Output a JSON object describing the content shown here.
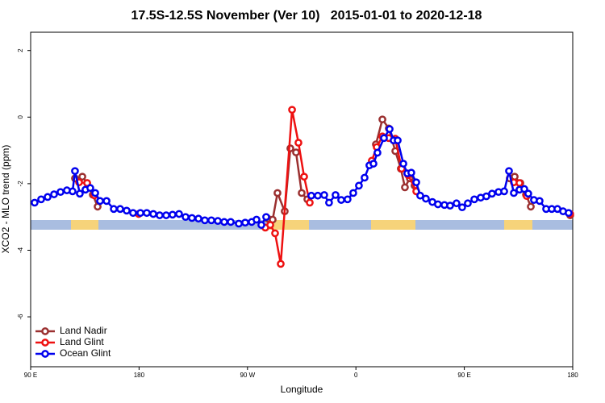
{
  "chart_data": {
    "type": "line",
    "title": "17.5S-12.5S November (Ver 10)   2015-01-01 to 2020-12-18",
    "x_label": "Longitude",
    "y_label": "XCO2 - MLO trend (ppm)",
    "xlim": [
      90,
      540
    ],
    "ylim": [
      -7.5,
      2.55
    ],
    "xticks": [
      {
        "value": 90,
        "label": "90 E"
      },
      {
        "value": 180,
        "label": "180"
      },
      {
        "value": 270,
        "label": "90 W"
      },
      {
        "value": 360,
        "label": "0"
      },
      {
        "value": 450,
        "label": "90 E"
      },
      {
        "value": 540,
        "label": "180"
      }
    ],
    "yticks": [
      2,
      0,
      -2,
      -4,
      -6
    ],
    "legend": "bottom-left",
    "series": [
      {
        "name": "Land Nadir",
        "color": "#9b3030",
        "x": [
          126.8,
          132.9,
          136.9,
          141.6,
          145.6,
          null,
          286.9,
          290.9,
          294.9,
          300.9,
          305.6,
          310.3,
          315.0,
          319.7,
          null,
          376.6,
          382.0,
          387.3,
          392.7,
          397.3,
          400.7,
          404.7,
          408.7,
          null,
          487.7,
          491.8,
          496.5,
          501.2,
          505.2,
          null,
          537.9
        ],
        "values": [
          -1.84,
          -1.79,
          -1.98,
          -2.33,
          -2.69,
          null,
          -3.05,
          -3.08,
          -2.28,
          -2.83,
          -0.94,
          -1.06,
          -2.28,
          -2.47,
          null,
          -0.82,
          -0.07,
          -0.34,
          -1.02,
          -1.55,
          -2.11,
          -1.84,
          -2.06,
          null,
          -1.84,
          -1.79,
          -1.98,
          -2.33,
          -2.69,
          null,
          -2.95
        ]
      },
      {
        "name": "Land Glint",
        "color": "#ee1111",
        "x": [
          130.2,
          136.9,
          142.9,
          null,
          179.7,
          null,
          284.8,
          288.9,
          292.9,
          297.6,
          307.0,
          312.3,
          317.0,
          321.7,
          null,
          373.2,
          377.3,
          382.0,
          387.3,
          392.7,
          398.0,
          403.4,
          410.1,
          null,
          491.1,
          495.8,
          501.8,
          null,
          537.9
        ],
        "values": [
          -1.96,
          -1.98,
          -2.35,
          null,
          -2.91,
          null,
          -3.32,
          -3.24,
          -3.49,
          -4.41,
          0.22,
          -0.77,
          -1.79,
          -2.57,
          null,
          -1.31,
          -0.9,
          -0.58,
          -0.63,
          -0.65,
          -1.55,
          -1.74,
          -2.23,
          null,
          -1.96,
          -1.98,
          -2.37,
          null,
          -2.91
        ]
      },
      {
        "name": "Ocean Glint",
        "color": "#0000ee",
        "x": [
          93.3,
          98.7,
          104.1,
          109.4,
          114.8,
          120.1,
          124.8,
          126.8,
          130.8,
          135.5,
          139.5,
          143.6,
          147.6,
          153.0,
          159.0,
          164.3,
          169.7,
          175.0,
          181.1,
          186.4,
          191.8,
          197.1,
          202.5,
          207.8,
          213.2,
          218.6,
          223.9,
          229.3,
          234.6,
          240.0,
          245.4,
          250.7,
          256.1,
          262.8,
          268.1,
          273.5,
          277.5,
          281.5,
          285.5,
          null,
          323.0,
          328.4,
          333.7,
          337.7,
          343.1,
          347.8,
          353.1,
          357.8,
          362.5,
          367.2,
          371.2,
          374.6,
          377.9,
          383.3,
          388.0,
          391.3,
          394.7,
          399.4,
          402.7,
          406.0,
          410.1,
          413.4,
          418.1,
          423.5,
          428.1,
          433.5,
          438.2,
          443.5,
          448.2,
          452.9,
          458.3,
          463.6,
          468.3,
          473.0,
          478.4,
          483.1,
          487.1,
          491.1,
          495.8,
          499.8,
          503.1,
          507.8,
          512.5,
          517.9,
          522.6,
          527.3,
          532.0,
          536.6
        ],
        "values": [
          -2.57,
          -2.47,
          -2.4,
          -2.32,
          -2.25,
          -2.2,
          -2.23,
          -1.62,
          -2.3,
          -2.18,
          -2.13,
          -2.28,
          -2.52,
          -2.52,
          -2.76,
          -2.76,
          -2.81,
          -2.88,
          -2.88,
          -2.88,
          -2.91,
          -2.95,
          -2.95,
          -2.93,
          -2.91,
          -3.0,
          -3.03,
          -3.05,
          -3.1,
          -3.1,
          -3.12,
          -3.15,
          -3.15,
          -3.2,
          -3.17,
          -3.15,
          -3.08,
          -3.24,
          -3.0,
          null,
          -2.36,
          -2.36,
          -2.34,
          -2.57,
          -2.34,
          -2.49,
          -2.47,
          -2.28,
          -2.06,
          -1.82,
          -1.45,
          -1.4,
          -1.07,
          -0.63,
          -0.36,
          -0.7,
          -0.7,
          -1.4,
          -1.69,
          -1.67,
          -1.96,
          -2.36,
          -2.45,
          -2.55,
          -2.62,
          -2.64,
          -2.66,
          -2.59,
          -2.71,
          -2.59,
          -2.47,
          -2.42,
          -2.38,
          -2.3,
          -2.25,
          -2.23,
          -1.62,
          -2.28,
          -2.18,
          -2.16,
          -2.3,
          -2.49,
          -2.52,
          -2.76,
          -2.76,
          -2.76,
          -2.83,
          -2.88
        ]
      }
    ]
  }
}
